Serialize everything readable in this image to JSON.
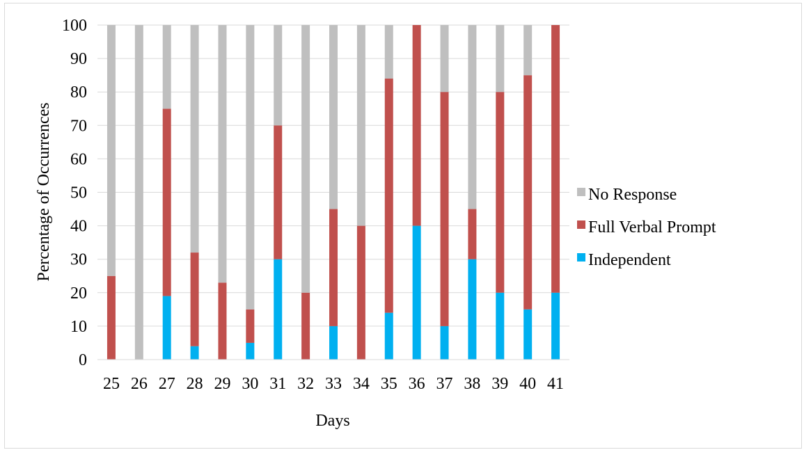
{
  "chart_data": {
    "type": "bar",
    "stacked": true,
    "title": "",
    "xlabel": "Days",
    "ylabel": "Percentage of Occurrences",
    "ylim": [
      0,
      100
    ],
    "yticks": [
      0,
      10,
      20,
      30,
      40,
      50,
      60,
      70,
      80,
      90,
      100
    ],
    "grid": true,
    "legend_position": "right",
    "categories": [
      "25",
      "26",
      "27",
      "28",
      "29",
      "30",
      "31",
      "32",
      "33",
      "34",
      "35",
      "36",
      "37",
      "38",
      "39",
      "40",
      "41"
    ],
    "series": [
      {
        "name": "Independent",
        "color": "#00b0f0",
        "values": [
          0,
          0,
          19,
          4,
          0,
          5,
          30,
          0,
          10,
          0,
          14,
          40,
          10,
          30,
          20,
          15,
          20
        ]
      },
      {
        "name": "Full Verbal Prompt",
        "color": "#c0504d",
        "values": [
          25,
          0,
          56,
          28,
          23,
          10,
          40,
          20,
          35,
          40,
          70,
          60,
          70,
          15,
          60,
          70,
          80
        ]
      },
      {
        "name": "No Response",
        "color": "#bfbfbf",
        "values": [
          75,
          100,
          25,
          68,
          77,
          85,
          30,
          80,
          55,
          60,
          16,
          0,
          20,
          55,
          20,
          15,
          0
        ]
      }
    ],
    "legend_order": [
      "No Response",
      "Full Verbal Prompt",
      "Independent"
    ]
  }
}
